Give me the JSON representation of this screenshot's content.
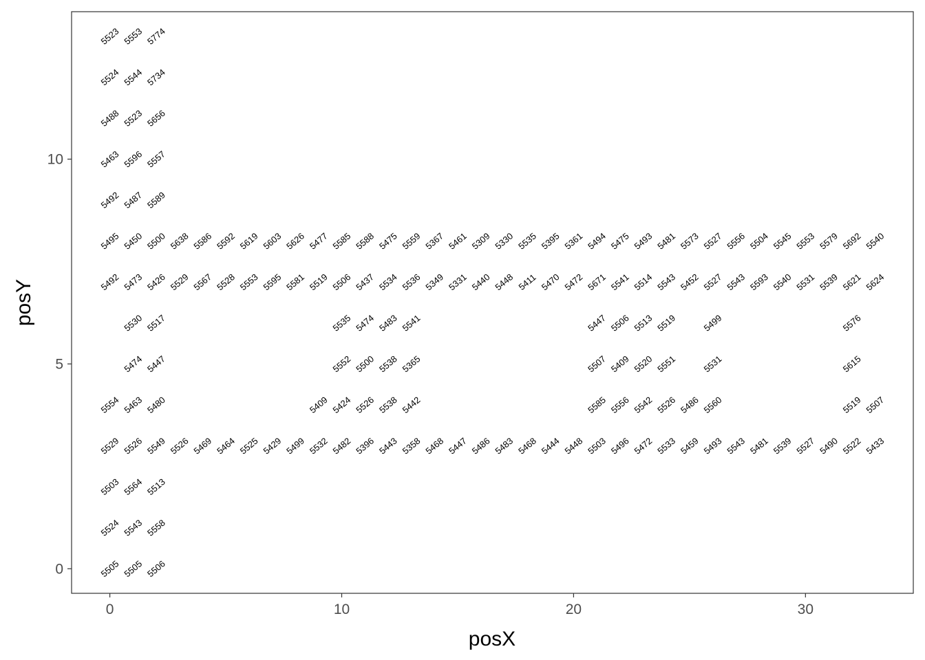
{
  "chart_data": {
    "type": "scatter",
    "title": "",
    "xlabel": "posX",
    "ylabel": "posY",
    "xlim": [
      -1.65,
      34.65
    ],
    "ylim": [
      -0.6,
      13.6
    ],
    "x_ticks": [
      0,
      10,
      20,
      30
    ],
    "y_ticks": [
      0,
      5,
      10
    ],
    "grid": false,
    "point_labels_only": true,
    "x_step": 1.0,
    "rows": [
      {
        "y": 13,
        "x": [
          0,
          1,
          2
        ],
        "labels": [
          "5523",
          "5553",
          "5774"
        ]
      },
      {
        "y": 12,
        "x": [
          0,
          1,
          2
        ],
        "labels": [
          "5524",
          "5544",
          "5734"
        ]
      },
      {
        "y": 11,
        "x": [
          0,
          1,
          2
        ],
        "labels": [
          "5488",
          "5523",
          "5656"
        ]
      },
      {
        "y": 10,
        "x": [
          0,
          1,
          2
        ],
        "labels": [
          "5463",
          "5596",
          "5557"
        ]
      },
      {
        "y": 9,
        "x": [
          0,
          1,
          2
        ],
        "labels": [
          "5492",
          "5487",
          "5589"
        ]
      },
      {
        "y": 8,
        "x": [
          0,
          1,
          2,
          3,
          4,
          5,
          6,
          7,
          8,
          9,
          10,
          11,
          12,
          13,
          14,
          15,
          16,
          17,
          18,
          19,
          20,
          21,
          22,
          23,
          24,
          25,
          26,
          27,
          28,
          29,
          30,
          31,
          32,
          33
        ],
        "labels": [
          "5495",
          "5450",
          "5500",
          "5638",
          "5586",
          "5592",
          "5619",
          "5603",
          "5626",
          "5477",
          "5585",
          "5588",
          "5475",
          "5559",
          "5367",
          "5461",
          "5309",
          "5330",
          "5535",
          "5395",
          "5361",
          "5494",
          "5475",
          "5493",
          "5481",
          "5573",
          "5527",
          "5556",
          "5504",
          "5545",
          "5553",
          "5579",
          "5692",
          "5540"
        ]
      },
      {
        "y": 7,
        "x": [
          0,
          1,
          2,
          3,
          4,
          5,
          6,
          7,
          8,
          9,
          10,
          11,
          12,
          13,
          14,
          15,
          16,
          17,
          18,
          19,
          20,
          21,
          22,
          23,
          24,
          25,
          26,
          27,
          28,
          29,
          30,
          31,
          32,
          33
        ],
        "labels": [
          "5492",
          "5473",
          "5426",
          "5529",
          "5567",
          "5528",
          "5553",
          "5595",
          "5581",
          "5519",
          "5506",
          "5437",
          "5534",
          "5536",
          "5349",
          "5331",
          "5440",
          "5448",
          "5411",
          "5470",
          "5472",
          "5671",
          "5541",
          "5514",
          "5543",
          "5452",
          "5527",
          "5543",
          "5593",
          "5540",
          "5531",
          "5539",
          "5621",
          "5624"
        ]
      },
      {
        "y": 6,
        "x": [
          1,
          2,
          10,
          11,
          12,
          13,
          21,
          22,
          23,
          24,
          26,
          32
        ],
        "labels": [
          "5530",
          "5517",
          "5535",
          "5474",
          "5483",
          "5541",
          "5447",
          "5506",
          "5513",
          "5519",
          "5499",
          "5576"
        ]
      },
      {
        "y": 5,
        "x": [
          1,
          2,
          10,
          11,
          12,
          13,
          21,
          22,
          23,
          24,
          26,
          32
        ],
        "labels": [
          "5474",
          "5447",
          "5552",
          "5500",
          "5538",
          "5365",
          "5507",
          "5409",
          "5520",
          "5551",
          "5531",
          "5615"
        ]
      },
      {
        "y": 4,
        "x": [
          0,
          1,
          2,
          9,
          10,
          11,
          12,
          13,
          21,
          22,
          23,
          24,
          25,
          26,
          32,
          33
        ],
        "labels": [
          "5554",
          "5463",
          "5480",
          "5409",
          "5424",
          "5526",
          "5538",
          "5442",
          "5585",
          "5556",
          "5542",
          "5526",
          "5486",
          "5560",
          "5519",
          "5507"
        ]
      },
      {
        "y": 3,
        "x": [
          0,
          1,
          2,
          3,
          4,
          5,
          6,
          7,
          8,
          9,
          10,
          11,
          12,
          13,
          14,
          15,
          16,
          17,
          18,
          19,
          20,
          21,
          22,
          23,
          24,
          25,
          26,
          27,
          28,
          29,
          30,
          31,
          32,
          33
        ],
        "labels": [
          "5529",
          "5526",
          "5549",
          "5526",
          "5469",
          "5464",
          "5525",
          "5429",
          "5499",
          "5532",
          "5482",
          "5396",
          "5443",
          "5358",
          "5468",
          "5447",
          "5486",
          "5483",
          "5468",
          "5444",
          "5448",
          "5503",
          "5496",
          "5472",
          "5533",
          "5459",
          "5493",
          "5543",
          "5481",
          "5539",
          "5527",
          "5490",
          "5522",
          "5433"
        ]
      },
      {
        "y": 2,
        "x": [
          0,
          1,
          2
        ],
        "labels": [
          "5503",
          "5564",
          "5513"
        ]
      },
      {
        "y": 1,
        "x": [
          0,
          1,
          2
        ],
        "labels": [
          "5524",
          "5543",
          "5558"
        ]
      },
      {
        "y": 0,
        "x": [
          0,
          1,
          2
        ],
        "labels": [
          "5505",
          "5505",
          "5506"
        ]
      }
    ]
  }
}
